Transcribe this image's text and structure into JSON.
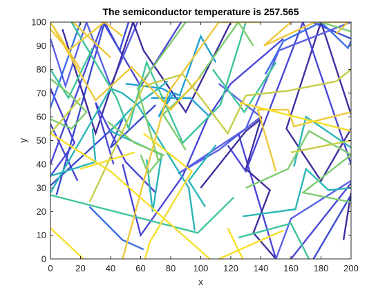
{
  "chart_data": {
    "type": "line",
    "title": "The semiconductor temperature is 257.565",
    "xlabel": "x",
    "ylabel": "y",
    "xlim": [
      0,
      200
    ],
    "ylim": [
      0,
      100
    ],
    "xticks": [
      0,
      20,
      40,
      60,
      80,
      100,
      120,
      140,
      160,
      180,
      200
    ],
    "yticks": [
      0,
      10,
      20,
      30,
      40,
      50,
      60,
      70,
      80,
      90,
      100
    ],
    "grid": false,
    "box": true,
    "colors": {
      "axis": "#262626",
      "palette": [
        "#3f2e9e",
        "#4a46d8",
        "#3b6ee8",
        "#1e9fd6",
        "#2ab5b8",
        "#3ec49a",
        "#7ccc6e",
        "#c6cd48",
        "#eec93a",
        "#f5df2a"
      ]
    },
    "series": [
      {
        "color": "#4a46d8",
        "points": [
          [
            0,
            40
          ],
          [
            35,
            100
          ],
          [
            60,
            73
          ],
          [
            87,
            100
          ]
        ]
      },
      {
        "color": "#3b4bd0",
        "points": [
          [
            4,
            27
          ],
          [
            36,
            100
          ],
          [
            46,
            88
          ],
          [
            52,
            100
          ]
        ]
      },
      {
        "color": "#5a62e6",
        "points": [
          [
            0,
            93
          ],
          [
            10,
            73
          ],
          [
            24,
            100
          ],
          [
            40,
            73
          ],
          [
            58,
            100
          ]
        ]
      },
      {
        "color": "#3f2e9e",
        "points": [
          [
            8,
            97
          ],
          [
            30,
            53
          ],
          [
            55,
            100
          ],
          [
            62,
            88
          ],
          [
            90,
            62
          ],
          [
            120,
            100
          ]
        ]
      },
      {
        "color": "#4a46d8",
        "points": [
          [
            0,
            72
          ],
          [
            16,
            49
          ],
          [
            0,
            35
          ]
        ]
      },
      {
        "color": "#3b6ee8",
        "points": [
          [
            0,
            64
          ],
          [
            20,
            100
          ]
        ]
      },
      {
        "color": "#4a46d8",
        "points": [
          [
            0,
            57
          ],
          [
            18,
            33
          ]
        ]
      },
      {
        "color": "#3b4bd0",
        "points": [
          [
            0,
            31
          ],
          [
            48,
            59
          ],
          [
            40,
            47
          ],
          [
            70,
            65
          ]
        ]
      },
      {
        "color": "#3f2e9e",
        "points": [
          [
            200,
            61
          ],
          [
            180,
            100
          ],
          [
            157,
            55
          ],
          [
            180,
            33
          ],
          [
            200,
            55
          ]
        ]
      },
      {
        "color": "#4a46d8",
        "points": [
          [
            200,
            40
          ],
          [
            168,
            100
          ],
          [
            130,
            37
          ],
          [
            118,
            48
          ]
        ]
      },
      {
        "color": "#3b4bd0",
        "points": [
          [
            174,
            100
          ],
          [
            200,
            93
          ]
        ]
      },
      {
        "color": "#4a46d8",
        "points": [
          [
            155,
            93
          ],
          [
            120,
            74
          ],
          [
            105,
            60
          ],
          [
            88,
            35
          ],
          [
            60,
            10
          ],
          [
            48,
            40
          ]
        ]
      },
      {
        "color": "#3b6ee8",
        "points": [
          [
            143,
            78
          ],
          [
            155,
            92
          ],
          [
            180,
            100
          ],
          [
            198,
            89
          ],
          [
            200,
            92
          ]
        ]
      },
      {
        "color": "#5a62e6",
        "points": [
          [
            112,
            74
          ],
          [
            140,
            60
          ],
          [
            112,
            46
          ],
          [
            85,
            36
          ],
          [
            130,
            55
          ],
          [
            152,
            88
          ],
          [
            200,
            100
          ]
        ]
      },
      {
        "color": "#4a46d8",
        "points": [
          [
            125,
            53
          ],
          [
            150,
            0
          ]
        ]
      },
      {
        "color": "#3f2e9e",
        "points": [
          [
            100,
            30
          ],
          [
            130,
            54
          ],
          [
            140,
            59
          ],
          [
            130,
            38
          ],
          [
            146,
            29
          ],
          [
            135,
            11
          ],
          [
            150,
            0
          ]
        ]
      },
      {
        "color": "#4a46d8",
        "points": [
          [
            200,
            32
          ],
          [
            160,
            0
          ]
        ]
      },
      {
        "color": "#3b4bd0",
        "points": [
          [
            200,
            27
          ],
          [
            175,
            0
          ]
        ]
      },
      {
        "color": "#5a62e6",
        "points": [
          [
            200,
            33
          ],
          [
            160,
            17
          ],
          [
            150,
            0
          ]
        ]
      },
      {
        "color": "#3f2e9e",
        "points": [
          [
            200,
            28
          ],
          [
            195,
            8
          ]
        ]
      },
      {
        "color": "#4a46d8",
        "points": [
          [
            42,
            40
          ],
          [
            30,
            66
          ],
          [
            50,
            41
          ],
          [
            70,
            28
          ]
        ]
      },
      {
        "color": "#3b6ee8",
        "points": [
          [
            26,
            22
          ],
          [
            48,
            8
          ],
          [
            62,
            4
          ]
        ]
      },
      {
        "color": "#2ab5b8",
        "points": [
          [
            0,
            28
          ],
          [
            40,
            72
          ],
          [
            48,
            70
          ],
          [
            58,
            65
          ],
          [
            92,
            30
          ],
          [
            96,
            12
          ]
        ]
      },
      {
        "color": "#1e9fd6",
        "points": [
          [
            50,
            74
          ],
          [
            74,
            72
          ],
          [
            80,
            70
          ],
          [
            72,
            60
          ],
          [
            82,
            70
          ],
          [
            86,
            69
          ],
          [
            100,
            94
          ],
          [
            110,
            83
          ]
        ]
      },
      {
        "color": "#1e9fd6",
        "points": [
          [
            67,
            68
          ],
          [
            93,
            68
          ],
          [
            106,
            60
          ]
        ]
      },
      {
        "color": "#3ec49a",
        "points": [
          [
            0,
            27
          ],
          [
            98,
            11
          ],
          [
            122,
            26
          ]
        ]
      },
      {
        "color": "#2ab5b8",
        "points": [
          [
            0,
            35
          ],
          [
            30,
            41
          ],
          [
            28,
            55
          ]
        ]
      },
      {
        "color": "#3ec49a",
        "points": [
          [
            14,
            100
          ],
          [
            44,
            68
          ],
          [
            52,
            55
          ],
          [
            64,
            83
          ],
          [
            88,
            49
          ],
          [
            113,
            65
          ],
          [
            130,
            100
          ]
        ]
      },
      {
        "color": "#2ab5b8",
        "points": [
          [
            78,
            75
          ],
          [
            53,
            63
          ],
          [
            40,
            54
          ],
          [
            74,
            44
          ],
          [
            68,
            20
          ],
          [
            64,
            42
          ]
        ]
      },
      {
        "color": "#3ec49a",
        "points": [
          [
            0,
            80
          ],
          [
            12,
            68
          ],
          [
            28,
            89
          ]
        ]
      },
      {
        "color": "#2ab5b8",
        "points": [
          [
            110,
            48
          ],
          [
            92,
            33
          ],
          [
            103,
            22
          ]
        ]
      },
      {
        "color": "#3ec49a",
        "points": [
          [
            150,
            83
          ],
          [
            129,
            62
          ],
          [
            108,
            80
          ]
        ]
      },
      {
        "color": "#2ab5b8",
        "points": [
          [
            128,
            18
          ],
          [
            163,
            21
          ],
          [
            170,
            38
          ],
          [
            185,
            29
          ],
          [
            200,
            30
          ]
        ]
      },
      {
        "color": "#3ec49a",
        "points": [
          [
            125,
            9
          ],
          [
            160,
            15
          ],
          [
            172,
            0
          ]
        ]
      },
      {
        "color": "#2ab5b8",
        "points": [
          [
            162,
            39
          ],
          [
            170,
            60
          ],
          [
            200,
            47
          ]
        ]
      },
      {
        "color": "#7ccc6e",
        "points": [
          [
            135,
            90
          ],
          [
            125,
            100
          ],
          [
            95,
            73
          ],
          [
            75,
            61
          ],
          [
            90,
            46
          ]
        ]
      },
      {
        "color": "#7ccc6e",
        "points": [
          [
            38,
            58
          ],
          [
            56,
            49
          ],
          [
            75,
            44
          ],
          [
            65,
            36
          ],
          [
            60,
            44
          ]
        ]
      },
      {
        "color": "#7ccc6e",
        "points": [
          [
            0,
            76
          ],
          [
            12,
            70
          ],
          [
            24,
            62
          ],
          [
            14,
            55
          ],
          [
            0,
            59
          ]
        ]
      },
      {
        "color": "#7ccc6e",
        "points": [
          [
            180,
            100
          ],
          [
            200,
            96
          ]
        ]
      },
      {
        "color": "#7ccc6e",
        "points": [
          [
            72,
            41
          ],
          [
            58,
            72
          ],
          [
            90,
            100
          ]
        ]
      },
      {
        "color": "#7ccc6e",
        "points": [
          [
            130,
            30
          ],
          [
            158,
            38
          ],
          [
            172,
            54
          ],
          [
            200,
            44
          ],
          [
            168,
            28
          ],
          [
            200,
            24
          ]
        ]
      },
      {
        "color": "#c6cd48",
        "points": [
          [
            26,
            24
          ],
          [
            62,
            73
          ],
          [
            88,
            78
          ],
          [
            118,
            53
          ],
          [
            130,
            69
          ],
          [
            158,
            71
          ],
          [
            190,
            75
          ],
          [
            200,
            80
          ]
        ]
      },
      {
        "color": "#c6cd48",
        "points": [
          [
            0,
            53
          ],
          [
            20,
            68
          ]
        ]
      },
      {
        "color": "#c6cd48",
        "points": [
          [
            160,
            45
          ],
          [
            200,
            50
          ]
        ]
      },
      {
        "color": "#eec93a",
        "points": [
          [
            0,
            100
          ],
          [
            30,
            67
          ],
          [
            54,
            81
          ],
          [
            80,
            63
          ],
          [
            100,
            77
          ]
        ]
      },
      {
        "color": "#eec93a",
        "points": [
          [
            40,
            85
          ],
          [
            15,
            100
          ]
        ]
      },
      {
        "color": "#eec93a",
        "points": [
          [
            0,
            100
          ],
          [
            20,
            80
          ]
        ]
      },
      {
        "color": "#eec93a",
        "points": [
          [
            0,
            97
          ],
          [
            12,
            88
          ],
          [
            36,
            100
          ],
          [
            48,
            94
          ]
        ]
      },
      {
        "color": "#eec93a",
        "points": [
          [
            48,
            0
          ],
          [
            78,
            70
          ],
          [
            112,
            100
          ],
          [
            140,
            100
          ]
        ]
      },
      {
        "color": "#eec93a",
        "points": [
          [
            160,
            100
          ],
          [
            142,
            90
          ],
          [
            176,
            100
          ],
          [
            198,
            100
          ],
          [
            190,
            95
          ]
        ]
      },
      {
        "color": "#eec93a",
        "points": [
          [
            150,
            37
          ],
          [
            138,
            63
          ],
          [
            158,
            63
          ],
          [
            162,
            56
          ],
          [
            200,
            62
          ]
        ]
      },
      {
        "color": "#f5df2a",
        "points": [
          [
            0,
            53
          ],
          [
            40,
            37
          ],
          [
            106,
            0
          ]
        ]
      },
      {
        "color": "#f5df2a",
        "points": [
          [
            20,
            38
          ],
          [
            56,
            45
          ]
        ]
      },
      {
        "color": "#f5df2a",
        "points": [
          [
            62,
            53
          ],
          [
            94,
            37
          ],
          [
            66,
            7
          ],
          [
            63,
            0
          ]
        ]
      },
      {
        "color": "#f5df2a",
        "points": [
          [
            0,
            13
          ],
          [
            22,
            0
          ]
        ]
      },
      {
        "color": "#f5df2a",
        "points": [
          [
            126,
            66
          ],
          [
            200,
            54
          ]
        ]
      },
      {
        "color": "#f5df2a",
        "points": [
          [
            118,
            13
          ],
          [
            128,
            0
          ]
        ]
      },
      {
        "color": "#f5df2a",
        "points": [
          [
            155,
            12
          ],
          [
            112,
            0
          ]
        ]
      }
    ]
  }
}
